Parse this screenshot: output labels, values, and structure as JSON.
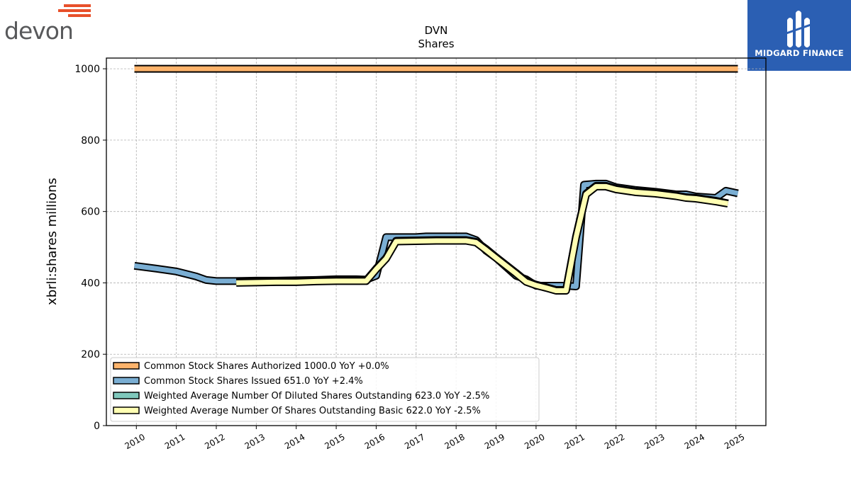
{
  "logos": {
    "left_brand": "devon",
    "right_brand": "MIDGARD FINANCE"
  },
  "chart_data": {
    "type": "line",
    "title": "DVN",
    "subtitle": "Shares",
    "ylabel": "xbrli:shares millions",
    "xlabel": "",
    "ylim": [
      0,
      1030
    ],
    "xlim": [
      2009.25,
      2025.75
    ],
    "yticks": [
      0,
      200,
      400,
      600,
      800,
      1000
    ],
    "xticks": [
      "2010",
      "2011",
      "2012",
      "2013",
      "2014",
      "2015",
      "2016",
      "2017",
      "2018",
      "2019",
      "2020",
      "2021",
      "2022",
      "2023",
      "2024",
      "2025"
    ],
    "grid": true,
    "legend_position": "lower-left",
    "series": [
      {
        "name": "Common Stock Shares Authorized",
        "legend": "Common Stock Shares Authorized  1000.0 YoY +0.0%",
        "color": "#fdb36b",
        "x": [
          2009.95,
          2025.05
        ],
        "y": [
          1000,
          1000
        ]
      },
      {
        "name": "Common Stock Shares Issued",
        "legend": "Common Stock Shares Issued  651.0 YoY +2.4%",
        "color": "#7aaed3",
        "x": [
          2009.95,
          2010.5,
          2011.0,
          2011.5,
          2011.75,
          2012.0,
          2012.5,
          2013.0,
          2013.5,
          2014.0,
          2014.5,
          2015.0,
          2015.5,
          2015.75,
          2016.0,
          2016.25,
          2016.5,
          2017.0,
          2017.25,
          2017.5,
          2018.0,
          2018.25,
          2018.5,
          2018.75,
          2019.0,
          2019.5,
          2019.75,
          2020.0,
          2020.5,
          2020.75,
          2021.0,
          2021.2,
          2021.5,
          2021.75,
          2022.0,
          2022.5,
          2023.0,
          2023.5,
          2023.75,
          2024.0,
          2024.5,
          2024.75,
          2025.05
        ],
        "y": [
          448,
          440,
          432,
          418,
          408,
          405,
          405,
          406,
          406,
          407,
          408,
          410,
          410,
          409,
          420,
          528,
          528,
          528,
          530,
          530,
          530,
          530,
          520,
          490,
          470,
          420,
          410,
          392,
          392,
          392,
          390,
          675,
          678,
          678,
          668,
          660,
          655,
          648,
          648,
          642,
          638,
          658,
          651
        ]
      },
      {
        "name": "Weighted Average Number Of Diluted Shares Outstanding",
        "legend": "Weighted Average Number Of Diluted Shares Outstanding  623.0 YoY -2.5%",
        "color": "#7fc8bc",
        "x": [
          2012.5,
          2013.0,
          2013.5,
          2014.0,
          2014.5,
          2015.0,
          2015.5,
          2015.75,
          2016.0,
          2016.25,
          2016.5,
          2017.0,
          2017.5,
          2018.0,
          2018.25,
          2018.5,
          2018.75,
          2019.0,
          2019.5,
          2019.75,
          2020.0,
          2020.25,
          2020.5,
          2020.75,
          2021.0,
          2021.25,
          2021.5,
          2021.75,
          2022.0,
          2022.5,
          2023.0,
          2023.5,
          2023.75,
          2024.0,
          2024.5,
          2024.8
        ],
        "y": [
          402,
          403,
          404,
          404,
          406,
          407,
          407,
          407,
          440,
          470,
          518,
          519,
          520,
          520,
          520,
          515,
          495,
          472,
          428,
          405,
          395,
          388,
          380,
          380,
          530,
          650,
          672,
          672,
          664,
          656,
          652,
          645,
          640,
          638,
          630,
          623
        ]
      },
      {
        "name": "Weighted Average Number Of Shares Outstanding Basic",
        "legend": "Weighted Average Number Of Shares Outstanding Basic  622.0 YoY -2.5%",
        "color": "#ffffb3",
        "x": [
          2012.5,
          2013.0,
          2013.5,
          2014.0,
          2014.5,
          2015.0,
          2015.5,
          2015.75,
          2016.0,
          2016.25,
          2016.5,
          2017.0,
          2017.5,
          2018.0,
          2018.25,
          2018.5,
          2018.75,
          2019.0,
          2019.5,
          2019.75,
          2020.0,
          2020.25,
          2020.5,
          2020.75,
          2021.0,
          2021.25,
          2021.5,
          2021.75,
          2022.0,
          2022.5,
          2023.0,
          2023.5,
          2023.75,
          2024.0,
          2024.5,
          2024.8
        ],
        "y": [
          400,
          401,
          402,
          402,
          404,
          405,
          405,
          405,
          438,
          468,
          516,
          517,
          518,
          518,
          518,
          513,
          492,
          470,
          426,
          403,
          393,
          386,
          378,
          378,
          528,
          648,
          670,
          670,
          662,
          654,
          650,
          643,
          638,
          636,
          628,
          622
        ]
      }
    ]
  }
}
